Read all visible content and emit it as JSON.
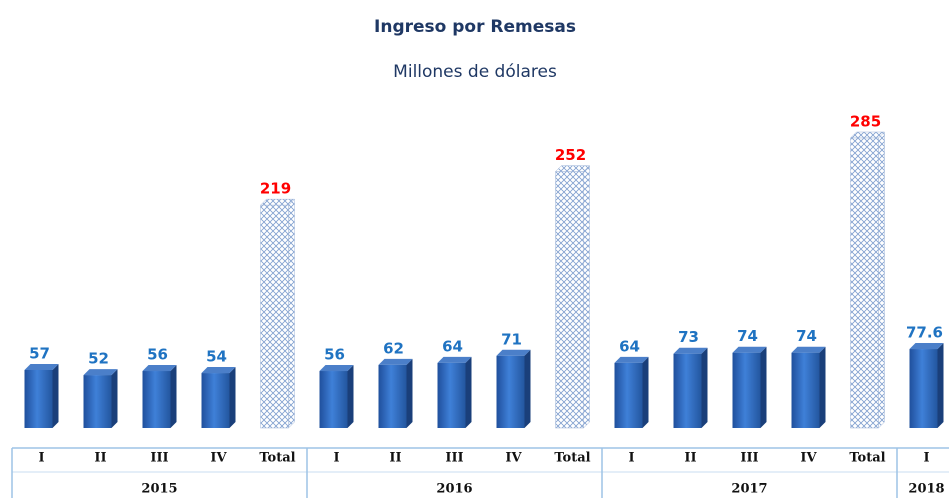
{
  "chart_data": {
    "type": "bar",
    "title": "Ingreso por Remesas",
    "subtitle": "Millones de dólares",
    "color": "#2f6ec4",
    "label_color": "#1f73c2",
    "total_label_color": "#ff0000",
    "groups": [
      {
        "name": "2015",
        "categories": [
          "I",
          "II",
          "III",
          "IV",
          "Total"
        ],
        "values": [
          57,
          52,
          56,
          54,
          219
        ]
      },
      {
        "name": "2016",
        "categories": [
          "I",
          "II",
          "III",
          "IV",
          "Total"
        ],
        "values": [
          56,
          62,
          64,
          71,
          252
        ]
      },
      {
        "name": "2017",
        "categories": [
          "I",
          "II",
          "III",
          "IV",
          "Total"
        ],
        "values": [
          64,
          73,
          74,
          74,
          285
        ]
      },
      {
        "name": "2018",
        "categories": [
          "I"
        ],
        "values": [
          77.6
        ]
      }
    ]
  }
}
